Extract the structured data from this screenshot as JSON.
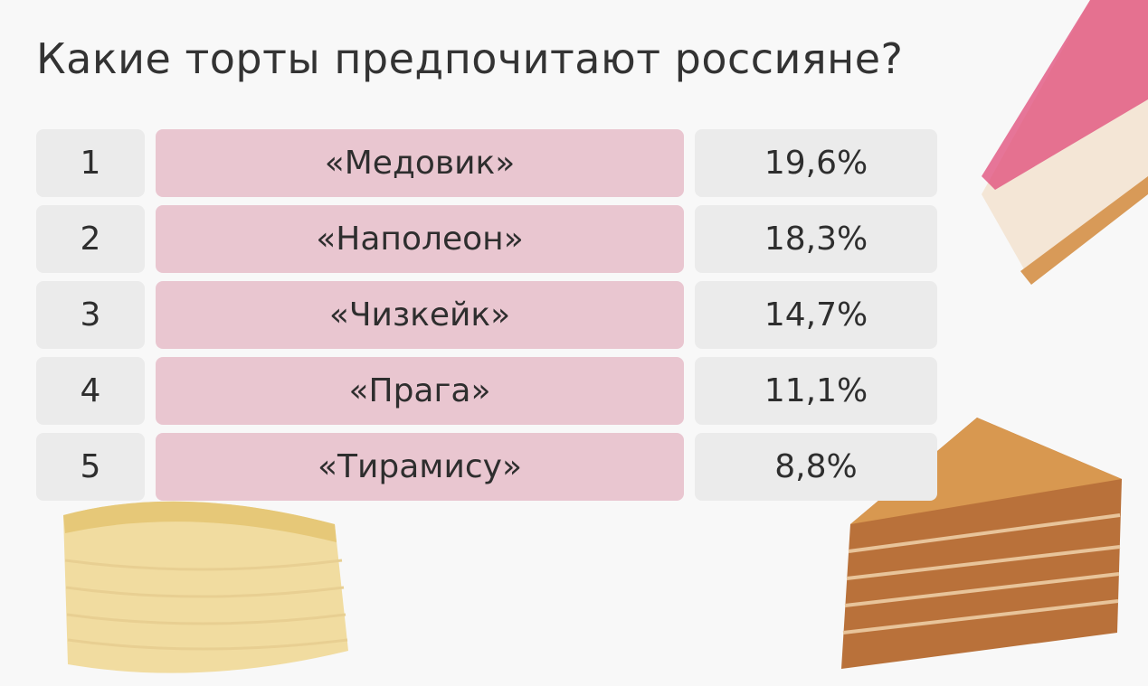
{
  "header": {
    "title": "Какие торты предпочитают россияне?"
  },
  "table": {
    "rows": [
      [
        "1",
        "«Медовик»",
        "19,6%"
      ],
      [
        "2",
        "«Наполеон»",
        "18,3%"
      ],
      [
        "3",
        "«Чизкейк»",
        "14,7%"
      ],
      [
        "4",
        "«Прага»",
        "11,1%"
      ],
      [
        "5",
        "«Тирамису»",
        "8,8%"
      ]
    ]
  }
}
